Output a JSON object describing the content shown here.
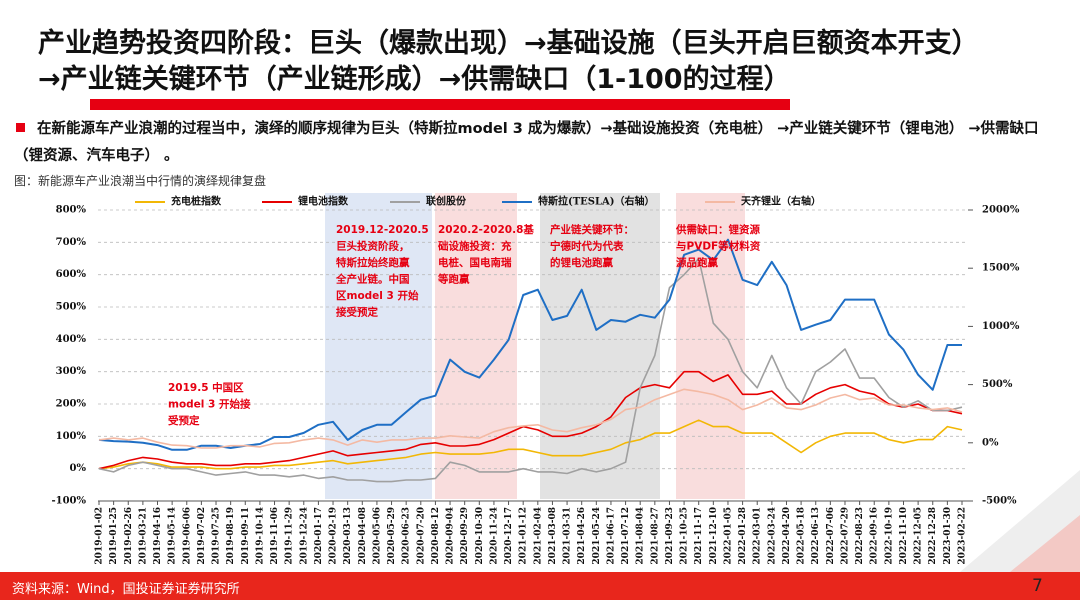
{
  "header": {
    "title": [
      "产业趋势投资四阶段：巨头（爆款出现）→基础设施（巨头开启巨额资本开支）",
      "→产业链关键环节（产业链形成）→供需缺口（1-100的过程）"
    ]
  },
  "bullet": "在新能源车产业浪潮的过程当中，演绎的顺序规律为巨头（特斯拉model 3 成为爆款）→基础设施投资（充电桩） →产业链关键环节（锂电池） →供需缺口（锂资源、汽车电子） 。",
  "caption": "图：新能源车产业浪潮当中行情的演绎规律复盘",
  "footer": {
    "source": "资料来源：Wind，国投证券证券研究所",
    "page": "7"
  },
  "chart_data": {
    "type": "line",
    "categories": [
      "2019-01-02",
      "2019-01-25",
      "2019-02-26",
      "2019-03-21",
      "2019-04-16",
      "2019-05-14",
      "2019-06-06",
      "2019-07-02",
      "2019-07-25",
      "2019-08-19",
      "2019-09-11",
      "2019-10-14",
      "2019-11-06",
      "2019-11-29",
      "2019-12-24",
      "2020-01-17",
      "2020-02-19",
      "2020-03-13",
      "2020-04-08",
      "2020-05-06",
      "2020-05-29",
      "2020-06-23",
      "2020-07-20",
      "2020-08-12",
      "2020-09-04",
      "2020-09-29",
      "2020-10-30",
      "2020-11-24",
      "2020-12-17",
      "2021-01-12",
      "2021-02-04",
      "2021-03-08",
      "2021-03-31",
      "2021-04-26",
      "2021-05-24",
      "2021-06-17",
      "2021-07-12",
      "2021-08-04",
      "2021-08-27",
      "2021-09-23",
      "2021-10-25",
      "2021-11-17",
      "2021-12-10",
      "2022-01-05",
      "2022-01-28",
      "2022-03-01",
      "2022-03-24",
      "2022-04-20",
      "2022-05-18",
      "2022-06-13",
      "2022-07-06",
      "2022-07-29",
      "2022-08-23",
      "2022-09-16",
      "2022-10-19",
      "2022-11-10",
      "2022-12-05",
      "2022-12-28",
      "2023-01-30",
      "2023-02-22"
    ],
    "series": [
      {
        "name": "充电桩指数",
        "color": "#f2b705",
        "values": [
          0,
          5,
          15,
          20,
          15,
          5,
          5,
          5,
          0,
          0,
          5,
          5,
          10,
          10,
          15,
          20,
          25,
          15,
          20,
          25,
          30,
          35,
          45,
          50,
          45,
          45,
          45,
          50,
          60,
          60,
          50,
          40,
          40,
          40,
          50,
          60,
          80,
          90,
          110,
          110,
          130,
          150,
          130,
          130,
          110,
          110,
          110,
          80,
          50,
          80,
          100,
          110,
          110,
          110,
          90,
          80,
          90,
          90,
          130,
          120
        ]
      },
      {
        "name": "锂电池指数",
        "color": "#e60000",
        "values": [
          0,
          10,
          25,
          35,
          30,
          20,
          15,
          15,
          10,
          10,
          15,
          15,
          20,
          25,
          35,
          45,
          55,
          40,
          45,
          50,
          55,
          60,
          75,
          80,
          70,
          70,
          75,
          90,
          110,
          130,
          120,
          100,
          100,
          110,
          130,
          160,
          220,
          250,
          260,
          250,
          300,
          300,
          270,
          290,
          230,
          230,
          240,
          200,
          200,
          230,
          250,
          260,
          240,
          230,
          200,
          190,
          200,
          180,
          180,
          170
        ]
      },
      {
        "name": "联创股份",
        "color": "#a0a0a0",
        "values": [
          0,
          -10,
          10,
          20,
          10,
          0,
          0,
          -10,
          -20,
          -15,
          -10,
          -20,
          -20,
          -25,
          -20,
          -30,
          -25,
          -35,
          -35,
          -40,
          -40,
          -35,
          -35,
          -30,
          20,
          10,
          -10,
          -10,
          -10,
          0,
          -10,
          -10,
          -15,
          0,
          -10,
          0,
          20,
          250,
          350,
          560,
          600,
          650,
          450,
          400,
          300,
          250,
          350,
          250,
          200,
          300,
          330,
          370,
          280,
          280,
          220,
          190,
          210,
          180,
          180,
          190
        ]
      },
      {
        "name": "特斯拉(TESLA)（右轴）",
        "color": "#1f6fc5",
        "axis": "y2",
        "values": [
          25,
          15,
          10,
          0,
          -20,
          -60,
          -60,
          -25,
          -25,
          -45,
          -25,
          -10,
          50,
          50,
          85,
          155,
          180,
          25,
          110,
          155,
          155,
          265,
          370,
          405,
          715,
          610,
          560,
          715,
          885,
          1270,
          1315,
          1055,
          1090,
          1315,
          970,
          1055,
          1040,
          1100,
          1075,
          1230,
          1615,
          1660,
          1570,
          1745,
          1400,
          1355,
          1555,
          1355,
          970,
          1015,
          1055,
          1230,
          1230,
          1230,
          930,
          800,
          585,
          455,
          840,
          840
        ]
      },
      {
        "name": "天齐锂业（右轴）",
        "color": "#f4b9a3",
        "axis": "y2",
        "values": [
          25,
          40,
          25,
          40,
          5,
          -20,
          -25,
          -45,
          -45,
          -25,
          -25,
          -35,
          -5,
          0,
          25,
          40,
          25,
          -20,
          25,
          5,
          25,
          25,
          40,
          40,
          60,
          50,
          40,
          95,
          130,
          145,
          155,
          110,
          95,
          130,
          155,
          200,
          285,
          305,
          370,
          415,
          460,
          440,
          415,
          370,
          285,
          325,
          385,
          300,
          285,
          325,
          385,
          415,
          370,
          385,
          325,
          325,
          300,
          285,
          300,
          265
        ]
      }
    ],
    "ylim": [
      -100,
      800
    ],
    "yticks": [
      {
        "value": -100,
        "label": "-100%"
      },
      {
        "value": 0,
        "label": "0%"
      },
      {
        "value": 100,
        "label": "100%"
      },
      {
        "value": 200,
        "label": "200%"
      },
      {
        "value": 300,
        "label": "300%"
      },
      {
        "value": 400,
        "label": "400%"
      },
      {
        "value": 500,
        "label": "500%"
      },
      {
        "value": 600,
        "label": "600%"
      },
      {
        "value": 700,
        "label": "700%"
      },
      {
        "value": 800,
        "label": "800%"
      }
    ],
    "y2lim": [
      -500,
      2000
    ],
    "y2ticks": [
      {
        "value": -500,
        "label": "-500%"
      },
      {
        "value": 0,
        "label": "0%"
      },
      {
        "value": 500,
        "label": "500%"
      },
      {
        "value": 1000,
        "label": "1000%"
      },
      {
        "value": 1500,
        "label": "1500%"
      },
      {
        "value": 2000,
        "label": "2000%"
      }
    ],
    "grid": true,
    "legend": "top",
    "annotations": [
      {
        "lines": [
          "2019.5 中国区",
          "model 3 开始接",
          "受预定"
        ]
      },
      {
        "lines": [
          "2019.12-2020.5",
          "巨头投资阶段，",
          "特斯拉始终跑赢",
          "全产业链。中国",
          "区model 3 开始",
          "接受预定"
        ]
      },
      {
        "lines": [
          "2020.2-2020.8基",
          "础设施投资：充",
          "电桩、国电南瑞",
          "等跑赢"
        ]
      },
      {
        "lines": [
          "产业链关键环节：",
          "宁德时代为代表",
          "的锂电池跑赢"
        ]
      },
      {
        "lines": [
          "供需缺口：锂资源",
          "与PVDF等材料资",
          "源品跑赢"
        ]
      }
    ]
  }
}
